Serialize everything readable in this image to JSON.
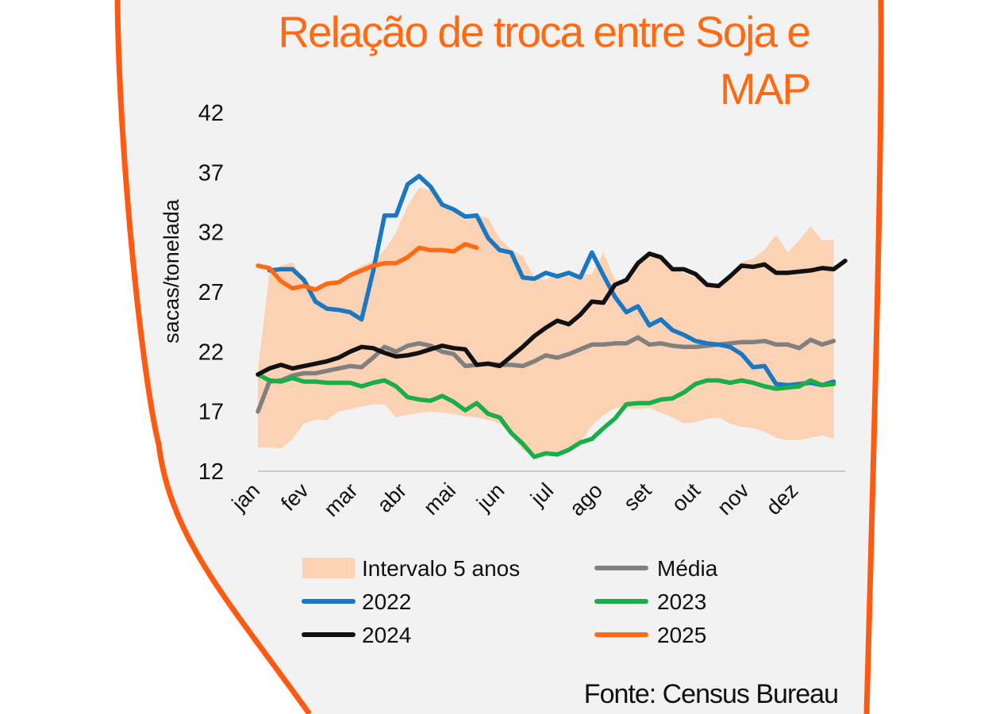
{
  "chart_data": {
    "type": "line",
    "title_line1": "Relação de troca entre Soja e",
    "title_line2": "MAP",
    "source": "Fonte: Census Bureau",
    "ylabel": "sacas/tonelada",
    "xlabel": "",
    "ylim": [
      12,
      42
    ],
    "yticks": [
      12,
      17,
      22,
      27,
      32,
      37,
      42
    ],
    "xlim": [
      0,
      51
    ],
    "month_labels": [
      "jan",
      "fev",
      "mar",
      "abr",
      "mai",
      "jun",
      "jul",
      "ago",
      "set",
      "out",
      "nov",
      "dez"
    ],
    "month_positions": [
      0,
      4.25,
      8.5,
      12.75,
      17,
      21.25,
      25.5,
      29.75,
      34,
      38.25,
      42.5,
      46.75
    ],
    "band": {
      "name": "Intervalo 5 anos",
      "color": "#fbd2b3",
      "upper": [
        20.5,
        28.5,
        29.2,
        29.5,
        28,
        27,
        27.5,
        28,
        28.6,
        29.2,
        29.6,
        30.5,
        32,
        34.2,
        35.7,
        35.5,
        34.5,
        33.8,
        33,
        33.4,
        33.2,
        31.5,
        30.5,
        30,
        28.2,
        28,
        28.6,
        28.3,
        28.5,
        28.5,
        30.3,
        28,
        28,
        29.5,
        30.2,
        29.8,
        29,
        28.6,
        28.2,
        27.7,
        27.4,
        28.5,
        29.5,
        29.8,
        30.5,
        31.8,
        30.3,
        31.3,
        32.5,
        31.3,
        31.4
      ],
      "lower": [
        14,
        14,
        13.9,
        14.7,
        16,
        16.3,
        16.3,
        17,
        17.2,
        17.4,
        17.6,
        17.6,
        16.5,
        16.7,
        16.9,
        17,
        16.9,
        16.8,
        16.6,
        16.5,
        16.3,
        16,
        15,
        13.8,
        13.2,
        13.4,
        13.4,
        13.9,
        14.5,
        15.8,
        16.7,
        17.3,
        17.3,
        17.2,
        17.3,
        16.9,
        16.5,
        16,
        16.1,
        16.4,
        16.5,
        16,
        15.7,
        15.6,
        15.3,
        14.8,
        14.6,
        14.6,
        14.8,
        15,
        14.7
      ]
    },
    "series": [
      {
        "name": "Média",
        "color": "#808080",
        "values": [
          17,
          19.5,
          19.6,
          20,
          20.2,
          20.2,
          20.4,
          20.6,
          20.8,
          20.7,
          21.5,
          22.4,
          22,
          22.5,
          22.7,
          22.5,
          22,
          21.8,
          20.8,
          20.9,
          21,
          20.9,
          20.9,
          20.8,
          21.2,
          21.7,
          21.5,
          21.8,
          22.2,
          22.6,
          22.6,
          22.7,
          22.7,
          23.2,
          22.6,
          22.7,
          22.5,
          22.4,
          22.4,
          22.5,
          22.6,
          22.7,
          22.8,
          22.8,
          22.9,
          22.6,
          22.6,
          22.3,
          23.0,
          22.6,
          22.9
        ]
      },
      {
        "name": "2022",
        "color": "#1a78c2",
        "values": [
          null,
          28.8,
          28.9,
          28.9,
          28,
          26.2,
          25.6,
          25.5,
          25.3,
          24.7,
          28.7,
          33.4,
          33.4,
          36.0,
          36.7,
          35.8,
          34.3,
          33.9,
          33.3,
          33.4,
          31.5,
          30.5,
          30.3,
          28.2,
          28.1,
          28.6,
          28.3,
          28.6,
          28.2,
          30.3,
          28.4,
          26.6,
          25.3,
          25.8,
          24.2,
          24.7,
          23.8,
          23.4,
          22.9,
          22.7,
          22.6,
          22.4,
          21.8,
          20.7,
          20.8,
          19.3,
          19.2,
          19.3,
          19.4,
          19.2,
          19.5
        ]
      },
      {
        "name": "2023",
        "color": "#1aae4a",
        "values": [
          20.1,
          19.6,
          19.5,
          19.8,
          19.5,
          19.5,
          19.4,
          19.4,
          19.4,
          19.1,
          19.4,
          19.6,
          19.1,
          18.2,
          18,
          17.9,
          18.3,
          17.8,
          17.1,
          17.7,
          16.8,
          16.5,
          15.2,
          14.3,
          13.2,
          13.5,
          13.4,
          13.8,
          14.4,
          14.7,
          15.6,
          16.4,
          17.6,
          17.7,
          17.7,
          18,
          18.1,
          18.6,
          19.3,
          19.6,
          19.6,
          19.4,
          19.6,
          19.4,
          19.1,
          18.9,
          19,
          19.1,
          19.6,
          19.2,
          19.3
        ]
      },
      {
        "name": "2024",
        "color": "#111111",
        "values": [
          20.1,
          20.6,
          20.9,
          20.6,
          20.8,
          21,
          21.2,
          21.5,
          22,
          22.4,
          22.3,
          21.9,
          21.6,
          21.7,
          21.9,
          22.2,
          22.5,
          22.3,
          22.2,
          20.9,
          21,
          20.8,
          21.6,
          22.4,
          23.3,
          24,
          24.6,
          24.3,
          25.1,
          26.2,
          26.1,
          27.6,
          28,
          29.4,
          30.2,
          29.9,
          28.9,
          28.9,
          28.5,
          27.6,
          27.5,
          28.3,
          29.2,
          29.1,
          29.3,
          28.6,
          28.6,
          28.7,
          28.8,
          29,
          28.9,
          29.6
        ]
      },
      {
        "name": "2025",
        "color": "#ff6a13",
        "values": [
          29.2,
          29,
          27.9,
          27.3,
          27.5,
          27.2,
          27.7,
          27.8,
          28.4,
          28.8,
          29.2,
          29.4,
          29.4,
          29.9,
          30.7,
          30.5,
          30.5,
          30.4,
          31,
          30.7
        ]
      }
    ],
    "legend": {
      "placement": "bottom",
      "items": [
        "Intervalo 5 anos",
        "Média",
        "2022",
        "2023",
        "2024",
        "2025"
      ]
    },
    "frame_color": "#ff5a12",
    "background_color": "#f2f2f2"
  }
}
